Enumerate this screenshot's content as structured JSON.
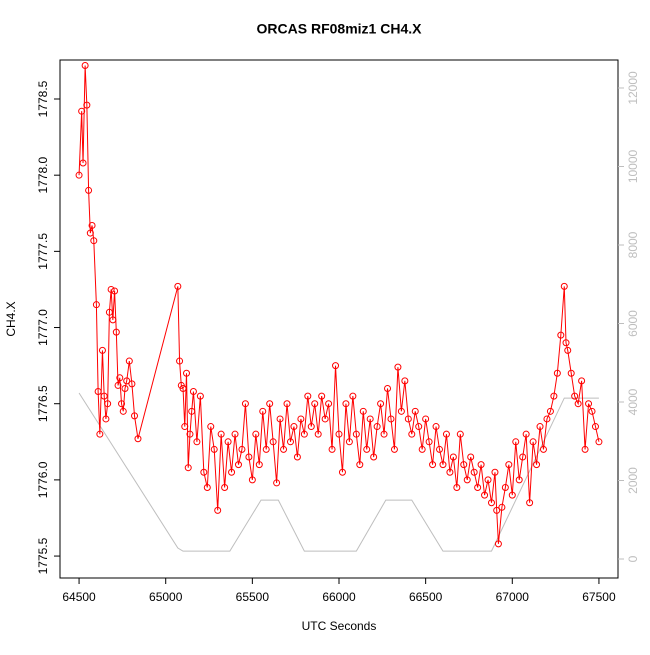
{
  "chart_data": {
    "type": "line",
    "title": "ORCAS RF08miz1 CH4.X",
    "x_label": "UTC Seconds",
    "y_label": "CH4.X",
    "xlim": [
      64390,
      67610
    ],
    "xticks": [
      64500,
      65000,
      65500,
      66000,
      66500,
      67000,
      67500
    ],
    "ylim": [
      1775.356,
      1778.756
    ],
    "yticks": [
      1775.5,
      {
        "value": 1776,
        "label": "1776.0"
      },
      1776.5,
      {
        "value": 1777,
        "label": "1777.0"
      },
      1777.5,
      {
        "value": 1778,
        "label": "1778.0"
      },
      1778.5
    ],
    "y2lim": [
      -484,
      12713
    ],
    "y2ticks": [
      0,
      2000,
      4000,
      6000,
      8000,
      10000,
      12000
    ],
    "series": [
      {
        "color": "#ff0000",
        "marker": "circle",
        "x": [
          64500,
          64515,
          64523,
          64535,
          64545,
          64555,
          64565,
          64575,
          64585,
          64600,
          64610,
          64620,
          64635,
          64645,
          64655,
          64665,
          64675,
          64685,
          64695,
          64705,
          64715,
          64725,
          64735,
          64745,
          64755,
          64765,
          64775,
          64790,
          64805,
          64820,
          64840,
          65070,
          65080,
          65090,
          65100,
          65110,
          65120,
          65130,
          65140,
          65150,
          65160,
          65180,
          65200,
          65220,
          65240,
          65260,
          65280,
          65300,
          65320,
          65340,
          65360,
          65380,
          65400,
          65420,
          65440,
          65460,
          65480,
          65500,
          65520,
          65540,
          65560,
          65580,
          65600,
          65620,
          65640,
          65660,
          65680,
          65700,
          65720,
          65740,
          65760,
          65780,
          65800,
          65820,
          65840,
          65860,
          65880,
          65900,
          65920,
          65940,
          65960,
          65980,
          66000,
          66020,
          66040,
          66060,
          66080,
          66100,
          66120,
          66140,
          66160,
          66180,
          66200,
          66220,
          66240,
          66260,
          66280,
          66300,
          66320,
          66340,
          66360,
          66380,
          66400,
          66420,
          66440,
          66460,
          66480,
          66500,
          66520,
          66540,
          66560,
          66580,
          66600,
          66620,
          66640,
          66660,
          66680,
          66700,
          66720,
          66740,
          66760,
          66780,
          66800,
          66820,
          66840,
          66860,
          66880,
          66900,
          66910,
          66920,
          66940,
          66960,
          66980,
          67000,
          67020,
          67040,
          67060,
          67080,
          67100,
          67120,
          67140,
          67160,
          67180,
          67200,
          67220,
          67240,
          67260,
          67280,
          67300,
          67310,
          67320,
          67340,
          67360,
          67380,
          67400,
          67420,
          67440,
          67460,
          67480,
          67500
        ],
        "values": [
          1778.0,
          1778.42,
          1778.08,
          1778.72,
          1778.46,
          1777.9,
          1777.62,
          1777.67,
          1777.57,
          1777.15,
          1776.58,
          1776.3,
          1776.85,
          1776.55,
          1776.4,
          1776.5,
          1777.1,
          1777.25,
          1777.05,
          1777.24,
          1776.97,
          1776.62,
          1776.67,
          1776.5,
          1776.45,
          1776.6,
          1776.65,
          1776.78,
          1776.63,
          1776.42,
          1776.27,
          1777.27,
          1776.78,
          1776.62,
          1776.6,
          1776.35,
          1776.7,
          1776.08,
          1776.3,
          1776.45,
          1776.58,
          1776.25,
          1776.55,
          1776.05,
          1775.95,
          1776.35,
          1776.2,
          1775.8,
          1776.3,
          1775.95,
          1776.25,
          1776.05,
          1776.3,
          1776.1,
          1776.2,
          1776.5,
          1776.15,
          1776.0,
          1776.3,
          1776.1,
          1776.45,
          1776.2,
          1776.5,
          1776.25,
          1775.98,
          1776.4,
          1776.2,
          1776.5,
          1776.25,
          1776.35,
          1776.15,
          1776.4,
          1776.3,
          1776.55,
          1776.35,
          1776.5,
          1776.3,
          1776.55,
          1776.4,
          1776.5,
          1776.2,
          1776.75,
          1776.3,
          1776.05,
          1776.5,
          1776.25,
          1776.55,
          1776.3,
          1776.1,
          1776.45,
          1776.2,
          1776.4,
          1776.15,
          1776.35,
          1776.5,
          1776.3,
          1776.6,
          1776.4,
          1776.2,
          1776.74,
          1776.45,
          1776.65,
          1776.4,
          1776.3,
          1776.45,
          1776.35,
          1776.2,
          1776.4,
          1776.25,
          1776.1,
          1776.35,
          1776.2,
          1776.1,
          1776.3,
          1776.05,
          1776.15,
          1775.95,
          1776.3,
          1776.1,
          1776.0,
          1776.15,
          1776.05,
          1775.95,
          1776.1,
          1775.9,
          1776.0,
          1775.85,
          1776.05,
          1775.8,
          1775.58,
          1775.82,
          1775.95,
          1776.1,
          1775.9,
          1776.25,
          1776.0,
          1776.15,
          1776.3,
          1775.85,
          1776.25,
          1776.1,
          1776.35,
          1776.2,
          1776.4,
          1776.45,
          1776.55,
          1776.7,
          1776.95,
          1777.27,
          1776.9,
          1776.85,
          1776.7,
          1776.55,
          1776.5,
          1776.65,
          1776.2,
          1776.5,
          1776.45,
          1776.35,
          1776.25
        ]
      },
      {
        "color": "#bebebe",
        "axis": "y2",
        "x": [
          64500,
          65070,
          65100,
          65370,
          65550,
          65650,
          65800,
          66100,
          66270,
          66420,
          66600,
          66880,
          67300,
          67500
        ],
        "values": [
          4230,
          280,
          200,
          200,
          1500,
          1500,
          200,
          200,
          1500,
          1500,
          200,
          200,
          4100,
          4100
        ]
      }
    ]
  }
}
